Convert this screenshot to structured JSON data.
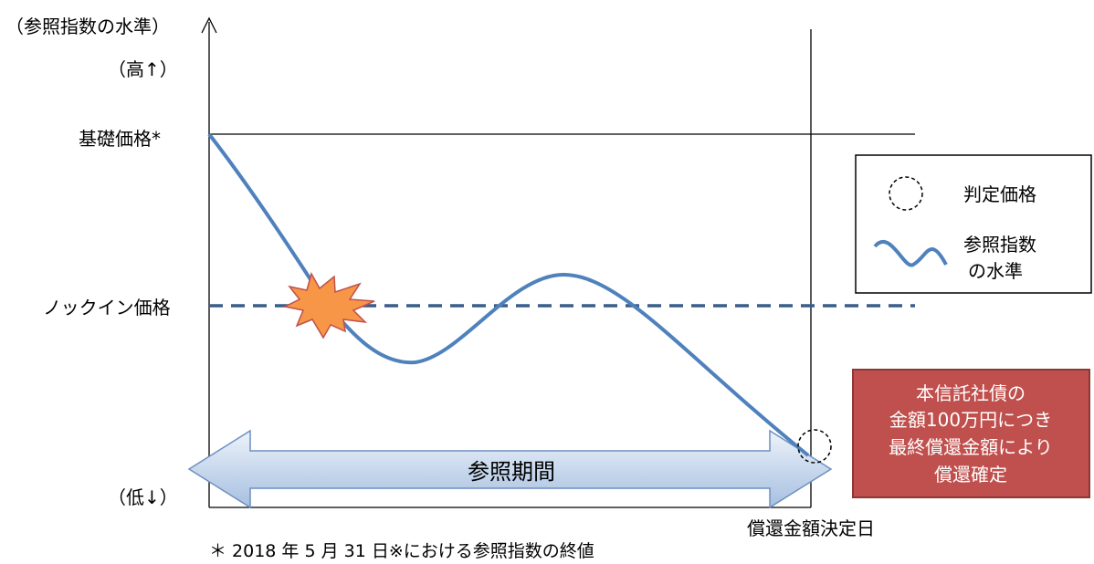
{
  "y_axis": {
    "title": "（参照指数の水準）",
    "high_label": "（高↑）",
    "low_label": "（低↓）"
  },
  "levels": {
    "base_price_label": "基礎価格*",
    "knock_in_label": "ノックイン価格"
  },
  "period": {
    "label": "参照期間"
  },
  "x_axis": {
    "determination_date_label": "償還金額決定日"
  },
  "footnote": "＊ 2018 年 5 月 31 日※における参照指数の終値",
  "legend": {
    "judgment_price_label": "判定価格",
    "index_level_line1": "参照指数",
    "index_level_line2": "の水準"
  },
  "callout": {
    "line1": "本信託社債の",
    "line2": "金額100万円につき",
    "line3": "最終償還金額により",
    "line4": "償還確定"
  },
  "colors": {
    "curve": "#4f81bd",
    "knock_in_line": "#385d8a",
    "burst_fill": "#f79646",
    "burst_stroke": "#c0504d",
    "arrow_fill_light": "#eef3fa",
    "arrow_fill_dark": "#a7c0e0",
    "arrow_stroke": "#6d90c0",
    "callout_fill": "#c0504d",
    "callout_stroke": "#8c3836",
    "callout_text": "#ffffff"
  }
}
